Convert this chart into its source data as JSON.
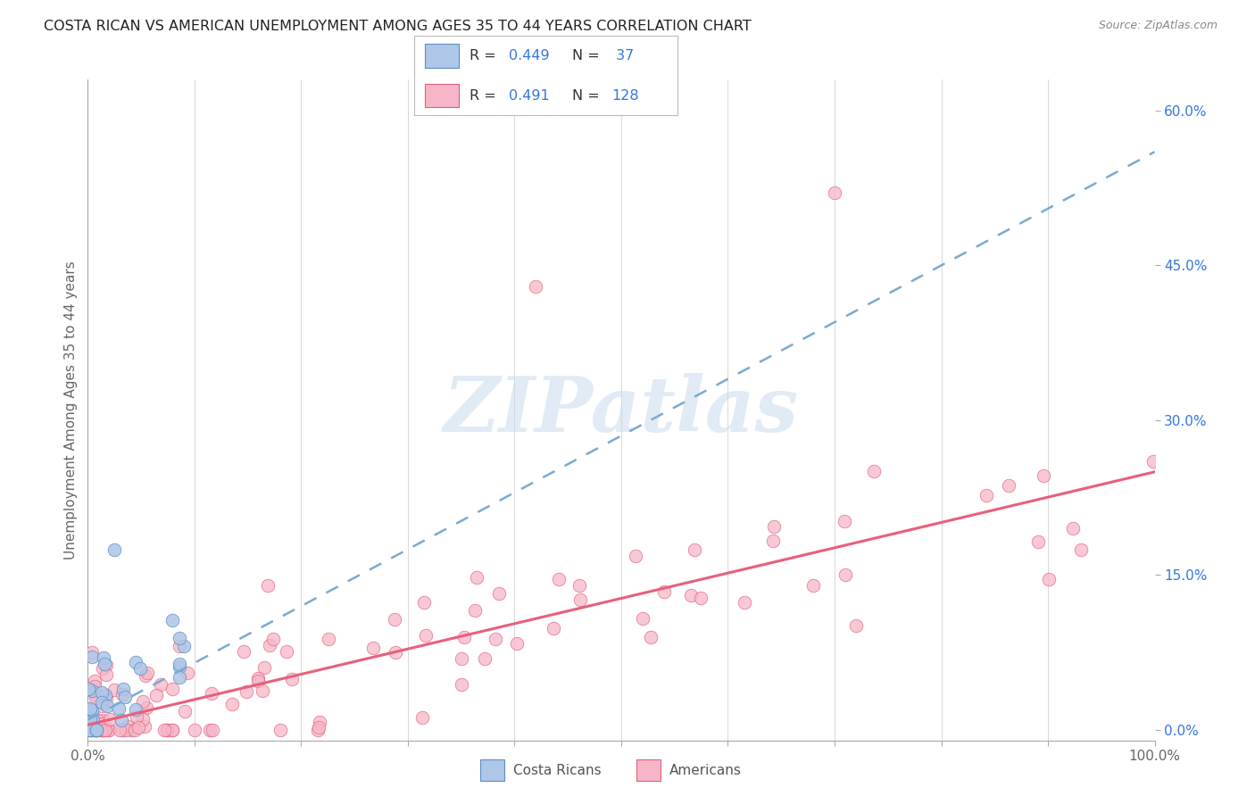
{
  "title": "COSTA RICAN VS AMERICAN UNEMPLOYMENT AMONG AGES 35 TO 44 YEARS CORRELATION CHART",
  "source": "Source: ZipAtlas.com",
  "ylabel": "Unemployment Among Ages 35 to 44 years",
  "watermark": "ZIPatlas",
  "xmin": 0.0,
  "xmax": 1.0,
  "ymin": -0.01,
  "ymax": 0.63,
  "right_yticks": [
    0.0,
    0.15,
    0.3,
    0.45,
    0.6
  ],
  "right_yticklabels": [
    "0.0%",
    "15.0%",
    "30.0%",
    "45.0%",
    "60.0%"
  ],
  "cr_R": 0.449,
  "cr_N": 37,
  "am_R": 0.491,
  "am_N": 128,
  "cr_color": "#aec6e8",
  "cr_edge_color": "#5b8ec4",
  "cr_line_color": "#7aaad0",
  "am_color": "#f7b6c8",
  "am_edge_color": "#e0607a",
  "am_line_color": "#e8607a",
  "background_color": "#ffffff",
  "grid_color": "#d0d0d0",
  "title_color": "#222222",
  "axis_label_color": "#666666",
  "right_tick_color": "#3377dd",
  "legend_text_color": "#333333",
  "legend_value_color": "#3377dd"
}
